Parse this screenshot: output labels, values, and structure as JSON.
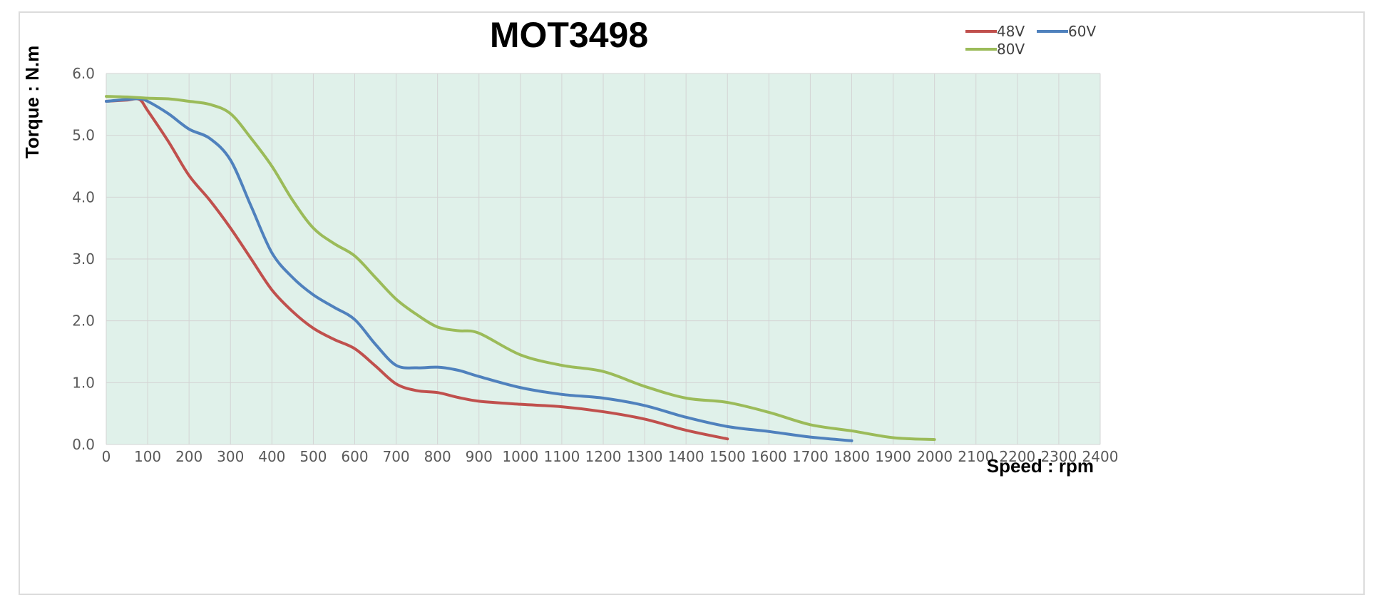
{
  "chart_data": {
    "type": "line",
    "title": "MOT3498",
    "xlabel": "Speed : rpm",
    "ylabel": "Torque : N.m",
    "xlim": [
      0,
      2400
    ],
    "ylim": [
      0,
      6
    ],
    "x_ticks": [
      "0",
      "100",
      "200",
      "300",
      "400",
      "500",
      "600",
      "700",
      "800",
      "900",
      "1000",
      "1100",
      "1200",
      "1300",
      "1400",
      "1500",
      "1600",
      "1700",
      "1800",
      "1900",
      "2000",
      "2100",
      "2200",
      "2300",
      "2400"
    ],
    "y_ticks": [
      "0.0",
      "1.0",
      "2.0",
      "3.0",
      "4.0",
      "5.0",
      "6.0"
    ],
    "grid": true,
    "plot_background": "#e0f1ea",
    "grid_color": "#d4d4d4",
    "legend_position": "top-right",
    "series": [
      {
        "name": "48V",
        "color": "#c0504d",
        "points": [
          [
            0,
            5.55
          ],
          [
            50,
            5.57
          ],
          [
            80,
            5.58
          ],
          [
            100,
            5.4
          ],
          [
            150,
            4.9
          ],
          [
            200,
            4.35
          ],
          [
            250,
            3.95
          ],
          [
            300,
            3.5
          ],
          [
            350,
            3.0
          ],
          [
            400,
            2.5
          ],
          [
            450,
            2.15
          ],
          [
            500,
            1.88
          ],
          [
            550,
            1.7
          ],
          [
            600,
            1.55
          ],
          [
            650,
            1.27
          ],
          [
            700,
            0.98
          ],
          [
            750,
            0.87
          ],
          [
            800,
            0.84
          ],
          [
            850,
            0.76
          ],
          [
            900,
            0.7
          ],
          [
            1000,
            0.65
          ],
          [
            1100,
            0.61
          ],
          [
            1200,
            0.53
          ],
          [
            1300,
            0.41
          ],
          [
            1400,
            0.23
          ],
          [
            1500,
            0.09
          ]
        ]
      },
      {
        "name": "60V",
        "color": "#4f81bd",
        "points": [
          [
            0,
            5.55
          ],
          [
            50,
            5.58
          ],
          [
            80,
            5.59
          ],
          [
            100,
            5.55
          ],
          [
            150,
            5.35
          ],
          [
            200,
            5.1
          ],
          [
            250,
            4.95
          ],
          [
            300,
            4.6
          ],
          [
            350,
            3.85
          ],
          [
            400,
            3.1
          ],
          [
            450,
            2.7
          ],
          [
            500,
            2.42
          ],
          [
            550,
            2.22
          ],
          [
            600,
            2.02
          ],
          [
            650,
            1.62
          ],
          [
            700,
            1.28
          ],
          [
            750,
            1.24
          ],
          [
            800,
            1.25
          ],
          [
            850,
            1.2
          ],
          [
            900,
            1.1
          ],
          [
            1000,
            0.92
          ],
          [
            1100,
            0.81
          ],
          [
            1200,
            0.75
          ],
          [
            1300,
            0.63
          ],
          [
            1400,
            0.44
          ],
          [
            1500,
            0.29
          ],
          [
            1600,
            0.21
          ],
          [
            1700,
            0.12
          ],
          [
            1800,
            0.06
          ]
        ]
      },
      {
        "name": "80V",
        "color": "#9bbb59",
        "points": [
          [
            0,
            5.63
          ],
          [
            50,
            5.62
          ],
          [
            100,
            5.6
          ],
          [
            150,
            5.59
          ],
          [
            200,
            5.55
          ],
          [
            250,
            5.5
          ],
          [
            300,
            5.35
          ],
          [
            350,
            4.95
          ],
          [
            400,
            4.5
          ],
          [
            450,
            3.95
          ],
          [
            500,
            3.5
          ],
          [
            550,
            3.25
          ],
          [
            600,
            3.05
          ],
          [
            650,
            2.7
          ],
          [
            700,
            2.35
          ],
          [
            750,
            2.1
          ],
          [
            800,
            1.9
          ],
          [
            850,
            1.84
          ],
          [
            900,
            1.8
          ],
          [
            1000,
            1.45
          ],
          [
            1100,
            1.28
          ],
          [
            1200,
            1.18
          ],
          [
            1300,
            0.94
          ],
          [
            1400,
            0.75
          ],
          [
            1500,
            0.68
          ],
          [
            1600,
            0.52
          ],
          [
            1700,
            0.32
          ],
          [
            1800,
            0.22
          ],
          [
            1900,
            0.11
          ],
          [
            2000,
            0.08
          ]
        ]
      }
    ]
  }
}
